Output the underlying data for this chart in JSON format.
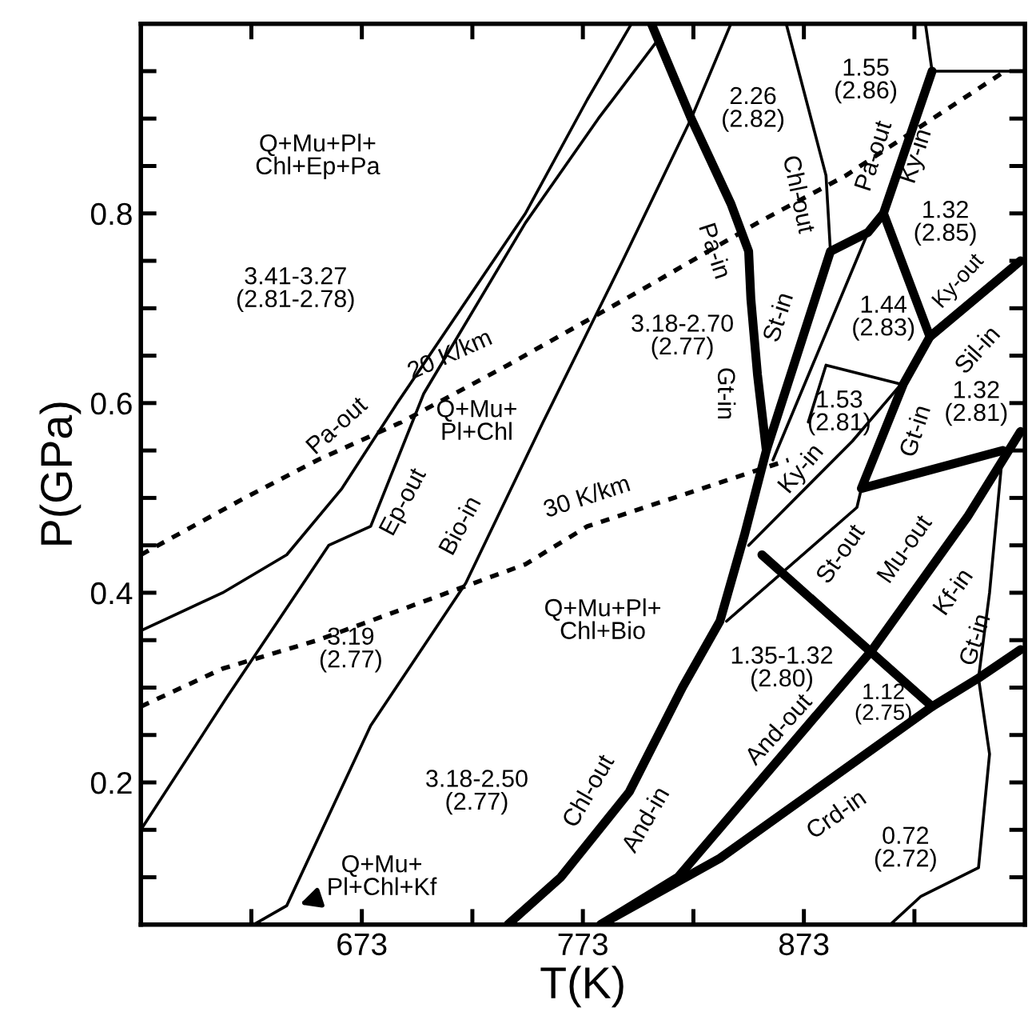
{
  "chart_data": {
    "type": "line",
    "xlabel": "T(K)",
    "ylabel": "P(GPa)",
    "xlim": [
      573,
      973
    ],
    "ylim": [
      0.05,
      1.0
    ],
    "xticks": [
      {
        "value": 623,
        "label": null
      },
      673,
      {
        "value": 723,
        "label": null
      },
      773,
      {
        "value": 823,
        "label": null
      },
      873,
      {
        "value": 923,
        "label": null
      }
    ],
    "yticks": [
      {
        "value": 0.1,
        "label": null
      },
      {
        "value": 0.15,
        "label": null
      },
      0.2,
      {
        "value": 0.25,
        "label": null
      },
      {
        "value": 0.3,
        "label": null
      },
      {
        "value": 0.35,
        "label": null
      },
      0.4,
      {
        "value": 0.45,
        "label": null
      },
      {
        "value": 0.5,
        "label": null
      },
      {
        "value": 0.55,
        "label": null
      },
      0.6,
      {
        "value": 0.65,
        "label": null
      },
      {
        "value": 0.7,
        "label": null
      },
      {
        "value": 0.75,
        "label": null
      },
      0.8,
      {
        "value": 0.85,
        "label": null
      },
      {
        "value": 0.9,
        "label": null
      },
      {
        "value": 0.95,
        "label": null
      }
    ],
    "grid": false,
    "legend": false,
    "series": [
      {
        "color": "#000000",
        "line_style": "solid",
        "x": [
          573,
          610,
          639,
          664,
          689,
          718,
          747,
          775,
          795
        ],
        "values": [
          0.36,
          0.4,
          0.44,
          0.51,
          0.6,
          0.7,
          0.8,
          0.92,
          1.0
        ]
      },
      {
        "color": "#000000",
        "line_style": "solid",
        "x": [
          573,
          612,
          658,
          677,
          701,
          747,
          780,
          806
        ],
        "values": [
          0.15,
          0.29,
          0.45,
          0.47,
          0.61,
          0.79,
          0.9,
          0.98
        ]
      },
      {
        "color": "#000000",
        "line_style": "solid",
        "x": [
          624,
          639,
          677,
          720,
          755,
          791,
          822,
          840
        ],
        "values": [
          0.05,
          0.07,
          0.26,
          0.41,
          0.58,
          0.75,
          0.9,
          1.0
        ]
      },
      {
        "color": "#000000",
        "line_style": "solid",
        "x": [
          804,
          822,
          840,
          848,
          849,
          852,
          856,
          846,
          835,
          818,
          794,
          763,
          739
        ],
        "values": [
          1.0,
          0.9,
          0.81,
          0.76,
          0.71,
          0.63,
          0.55,
          0.46,
          0.37,
          0.3,
          0.19,
          0.1,
          0.05
        ]
      },
      {
        "color": "#000000",
        "line_style": "solid",
        "x": [
          856,
          885,
          902,
          909,
          931
        ],
        "values": [
          0.55,
          0.76,
          0.78,
          0.8,
          0.95
        ]
      },
      {
        "color": "#000000",
        "line_style": "solid",
        "x": [
          928,
          931,
          968
        ],
        "values": [
          1.0,
          0.95,
          0.95
        ]
      },
      {
        "color": "#000000",
        "line_style": "solid",
        "x": [
          909,
          930,
          971
        ],
        "values": [
          0.8,
          0.67,
          0.75
        ]
      },
      {
        "color": "#000000",
        "line_style": "solid",
        "x": [
          865,
          883,
          885
        ],
        "values": [
          1.0,
          0.84,
          0.76
        ]
      },
      {
        "color": "#000000",
        "line_style": "solid",
        "x": [
          859,
          902
        ],
        "values": [
          0.54,
          0.78
        ]
      },
      {
        "color": "#000000",
        "line_style": "solid",
        "x": [
          848,
          895,
          917,
          883,
          875
        ],
        "values": [
          0.45,
          0.56,
          0.62,
          0.64,
          0.58
        ]
      },
      {
        "color": "#000000",
        "line_style": "solid",
        "x": [
          930,
          918,
          899,
          963
        ],
        "values": [
          0.67,
          0.62,
          0.51,
          0.55
        ]
      },
      {
        "color": "#000000",
        "line_style": "solid",
        "x": [
          781,
          816,
          904,
          947,
          971
        ],
        "values": [
          0.05,
          0.1,
          0.34,
          0.48,
          0.57
        ]
      },
      {
        "color": "#000000",
        "line_style": "solid",
        "x": [
          838,
          897,
          899
        ],
        "values": [
          0.37,
          0.49,
          0.51
        ]
      },
      {
        "color": "#000000",
        "line_style": "solid",
        "x": [
          854,
          931
        ],
        "values": [
          0.44,
          0.28
        ]
      },
      {
        "color": "#000000",
        "line_style": "solid",
        "x": [
          781,
          835,
          931,
          952,
          971
        ],
        "values": [
          0.05,
          0.12,
          0.28,
          0.31,
          0.34
        ]
      },
      {
        "color": "#000000",
        "line_style": "solid",
        "x": [
          963,
          957,
          952,
          957,
          952,
          926,
          912
        ],
        "values": [
          0.55,
          0.4,
          0.31,
          0.23,
          0.11,
          0.08,
          0.05
        ]
      },
      {
        "color": "#000000",
        "line_style": "dotted",
        "x": [
          573,
          620,
          653,
          691,
          739,
          800,
          852,
          892,
          964
        ],
        "values": [
          0.44,
          0.5,
          0.54,
          0.58,
          0.64,
          0.72,
          0.79,
          0.84,
          0.95
        ]
      },
      {
        "color": "#000000",
        "line_style": "dotted",
        "x": [
          573,
          610,
          653,
          700,
          747,
          775,
          866
        ],
        "values": [
          0.28,
          0.32,
          0.35,
          0.39,
          0.43,
          0.47,
          0.54
        ]
      }
    ],
    "annotations": [
      "Q+Mu+Pl+\nChl+Ep+Pa",
      "3.41-3.27\n(2.81-2.78)",
      "Pa-out",
      "Ep-out",
      "Q+Mu+\nPl+Chl",
      "20 K/km",
      "Bio-in",
      "30 K/km",
      "3.19\n(2.77)",
      "Q+Mu+Pl+\nChl+Bio",
      "3.18-2.50\n(2.77)",
      "Q+Mu+\nPl+Chl+Kf",
      "2.26\n(2.82)",
      "Pa-in",
      "3.18-2.70\n(2.77)",
      "Gt-in",
      "Chl-out",
      "St-in",
      "1.55\n(2.86)",
      "Pa-out",
      "Ky-in",
      "1.32\n(2.85)",
      "1.44\n(2.83)",
      "Ky-out",
      "Sil-in",
      "1.32\n(2.81)",
      "1.53\n(2.81)",
      "Gt-in",
      "Ky-in",
      "St-out",
      "Mu-out",
      "Kf-in",
      "Gt-in",
      "1.35-1.32\n(2.80)",
      "1.12\n(2.75)",
      "Chl-out",
      "And-in",
      "And-out",
      "Crd-in",
      "0.72\n(2.72)"
    ]
  }
}
